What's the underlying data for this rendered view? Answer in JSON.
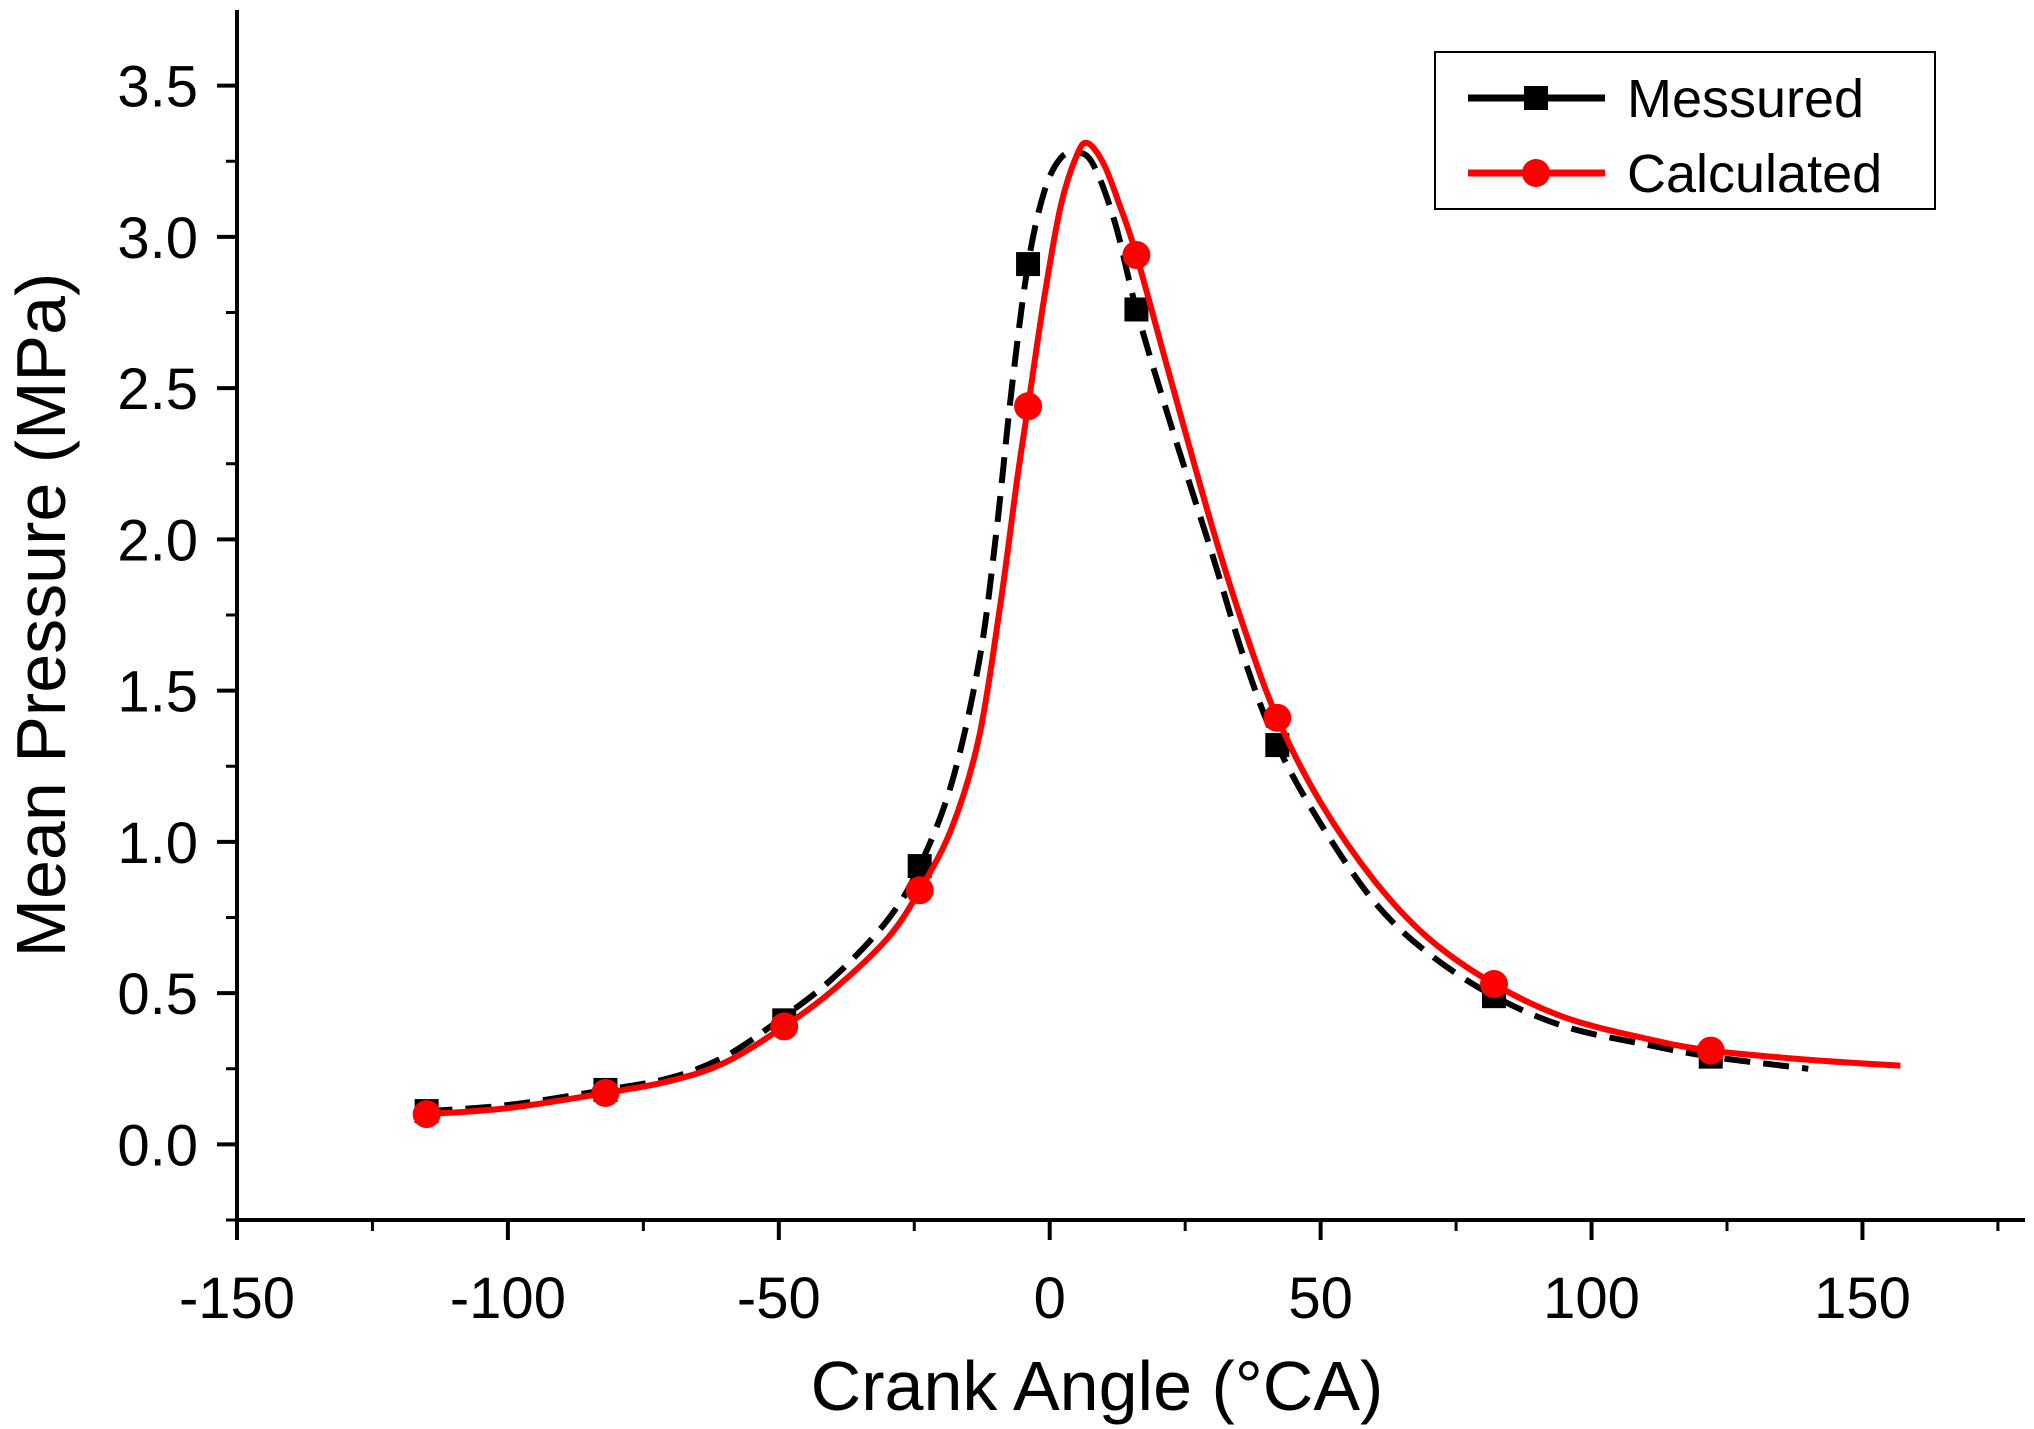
{
  "chart_data": {
    "type": "line",
    "title": "",
    "xlabel": "Crank Angle (°CA)",
    "ylabel": "Mean Pressure (MPa)",
    "xlim": [
      -150,
      180
    ],
    "ylim": [
      -0.25,
      3.75
    ],
    "x_ticks": [
      -150,
      -100,
      -50,
      0,
      50,
      100,
      150
    ],
    "x_tick_labels": [
      "-150",
      "-100",
      "-50",
      "0",
      "50",
      "100",
      "150"
    ],
    "y_ticks": [
      0.0,
      0.5,
      1.0,
      1.5,
      2.0,
      2.5,
      3.0,
      3.5
    ],
    "y_tick_labels": [
      "0.0",
      "0.5",
      "1.0",
      "1.5",
      "2.0",
      "2.5",
      "3.0",
      "3.5"
    ],
    "grid": false,
    "legend_position": "top-right",
    "series": [
      {
        "name": "Messured",
        "color": "#000000",
        "line_style": "dashed",
        "marker": "square",
        "curve": [
          [
            -115,
            0.11
          ],
          [
            -100,
            0.13
          ],
          [
            -82,
            0.18
          ],
          [
            -70,
            0.22
          ],
          [
            -60,
            0.29
          ],
          [
            -50,
            0.41
          ],
          [
            -40,
            0.55
          ],
          [
            -30,
            0.74
          ],
          [
            -24,
            0.92
          ],
          [
            -18,
            1.2
          ],
          [
            -13,
            1.6
          ],
          [
            -10,
            2.0
          ],
          [
            -7,
            2.5
          ],
          [
            -4,
            2.91
          ],
          [
            -1,
            3.15
          ],
          [
            2,
            3.26
          ],
          [
            5,
            3.28
          ],
          [
            8,
            3.24
          ],
          [
            12,
            3.05
          ],
          [
            16,
            2.76
          ],
          [
            22,
            2.4
          ],
          [
            30,
            1.95
          ],
          [
            36,
            1.6
          ],
          [
            42,
            1.32
          ],
          [
            50,
            1.06
          ],
          [
            60,
            0.8
          ],
          [
            70,
            0.63
          ],
          [
            82,
            0.49
          ],
          [
            95,
            0.39
          ],
          [
            110,
            0.33
          ],
          [
            122,
            0.29
          ],
          [
            140,
            0.25
          ]
        ],
        "points": [
          [
            -115,
            0.11
          ],
          [
            -82,
            0.18
          ],
          [
            -49,
            0.41
          ],
          [
            -24,
            0.92
          ],
          [
            -4,
            2.91
          ],
          [
            16,
            2.76
          ],
          [
            42,
            1.32
          ],
          [
            82,
            0.49
          ],
          [
            122,
            0.29
          ]
        ]
      },
      {
        "name": "Calculated",
        "color": "#ff0000",
        "line_style": "solid",
        "marker": "circle",
        "curve": [
          [
            -115,
            0.1
          ],
          [
            -100,
            0.12
          ],
          [
            -82,
            0.17
          ],
          [
            -70,
            0.21
          ],
          [
            -60,
            0.27
          ],
          [
            -49,
            0.39
          ],
          [
            -40,
            0.51
          ],
          [
            -30,
            0.68
          ],
          [
            -24,
            0.84
          ],
          [
            -18,
            1.05
          ],
          [
            -13,
            1.35
          ],
          [
            -9,
            1.8
          ],
          [
            -6,
            2.2
          ],
          [
            -4,
            2.44
          ],
          [
            -1,
            2.8
          ],
          [
            2,
            3.1
          ],
          [
            5,
            3.27
          ],
          [
            7,
            3.31
          ],
          [
            10,
            3.24
          ],
          [
            13,
            3.1
          ],
          [
            16,
            2.94
          ],
          [
            22,
            2.55
          ],
          [
            30,
            2.04
          ],
          [
            36,
            1.7
          ],
          [
            42,
            1.41
          ],
          [
            50,
            1.13
          ],
          [
            60,
            0.87
          ],
          [
            70,
            0.68
          ],
          [
            82,
            0.53
          ],
          [
            95,
            0.42
          ],
          [
            110,
            0.35
          ],
          [
            122,
            0.31
          ],
          [
            140,
            0.28
          ],
          [
            157,
            0.26
          ]
        ],
        "points": [
          [
            -115,
            0.1
          ],
          [
            -82,
            0.17
          ],
          [
            -49,
            0.39
          ],
          [
            -24,
            0.84
          ],
          [
            -4,
            2.44
          ],
          [
            16,
            2.94
          ],
          [
            42,
            1.41
          ],
          [
            82,
            0.53
          ],
          [
            122,
            0.31
          ]
        ]
      }
    ]
  }
}
